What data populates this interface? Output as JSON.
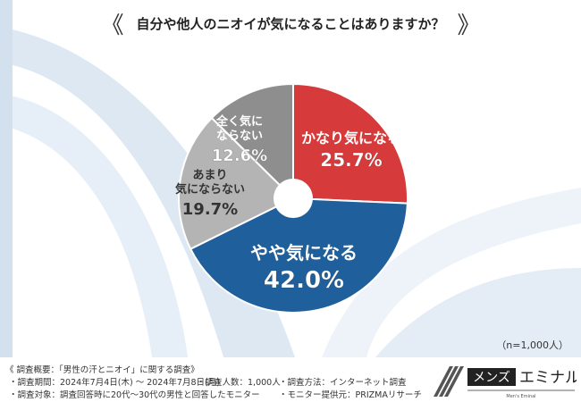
{
  "title": "自分や他人のニオイが気になることはありますか？",
  "sample": "（n=1,000人）",
  "footer": {
    "heading": "《 調査概要：「男性の汗とニオイ」に関する調査》",
    "period": "・調査期間：2024年7月4日(木) ～ 2024年7月8日(月)",
    "count": "・調査人数：1,000人",
    "method": "・調査方法：インターネット調査",
    "target": "・調査対象：調査回答時に20代～30代の男性と回答したモニター",
    "provider": "・モニター提供元：PRIZMAリサーチ"
  },
  "logo": {
    "brand": "メンズエミナル",
    "sub": "Men's Eminal"
  },
  "chart_data": {
    "type": "pie",
    "title": "自分や他人のニオイが気になることはありますか？",
    "donut": true,
    "start": "top",
    "direction": "clockwise",
    "slices": [
      {
        "label": "かなり気になる",
        "value": 25.7,
        "display": "25.7%",
        "color": "#d63a3a"
      },
      {
        "label": "やや気になる",
        "value": 42.0,
        "display": "42.0%",
        "color": "#1f5f9b"
      },
      {
        "label": "あまり気にならない",
        "value": 19.7,
        "display": "19.7%",
        "color": "#b4b4b4"
      },
      {
        "label": "全く気にならない",
        "value": 12.6,
        "display": "12.6%",
        "color": "#8e8e8e"
      }
    ]
  }
}
